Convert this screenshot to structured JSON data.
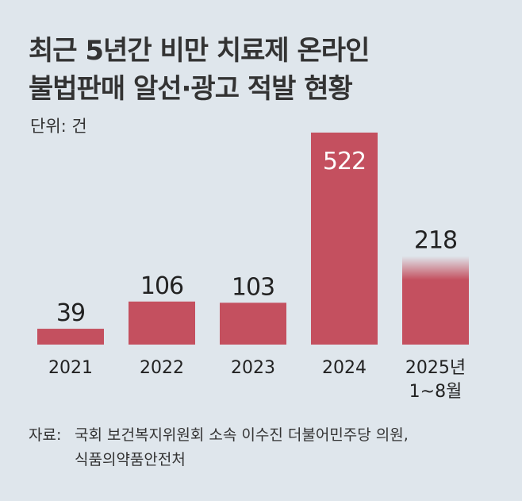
{
  "title_lines": [
    "최근 5년간 비만 치료제 온라인",
    "불법판매 알선·광고 적발 현황"
  ],
  "unit": "단위: 건",
  "source": {
    "label": "자료:",
    "line1": "국회 보건복지위원회 소속 이수진 더불어민주당 의원,",
    "line2": "식품의약품안전처"
  },
  "colors": {
    "bar": "#c4505f",
    "background": "#dfe6ec",
    "text": "#222222"
  },
  "chart_data": {
    "type": "bar",
    "title": "최근 5년간 비만 치료제 온라인 불법판매 알선·광고 적발 현황",
    "categories": [
      "2021",
      "2022",
      "2023",
      "2024",
      "2025년\n1~8월"
    ],
    "values": [
      39,
      106,
      103,
      522,
      218
    ],
    "data_labels": [
      "39",
      "106",
      "103",
      "522",
      "218"
    ],
    "unit": "건",
    "ylim": [
      0,
      522
    ],
    "grid": false,
    "legend": "none"
  }
}
